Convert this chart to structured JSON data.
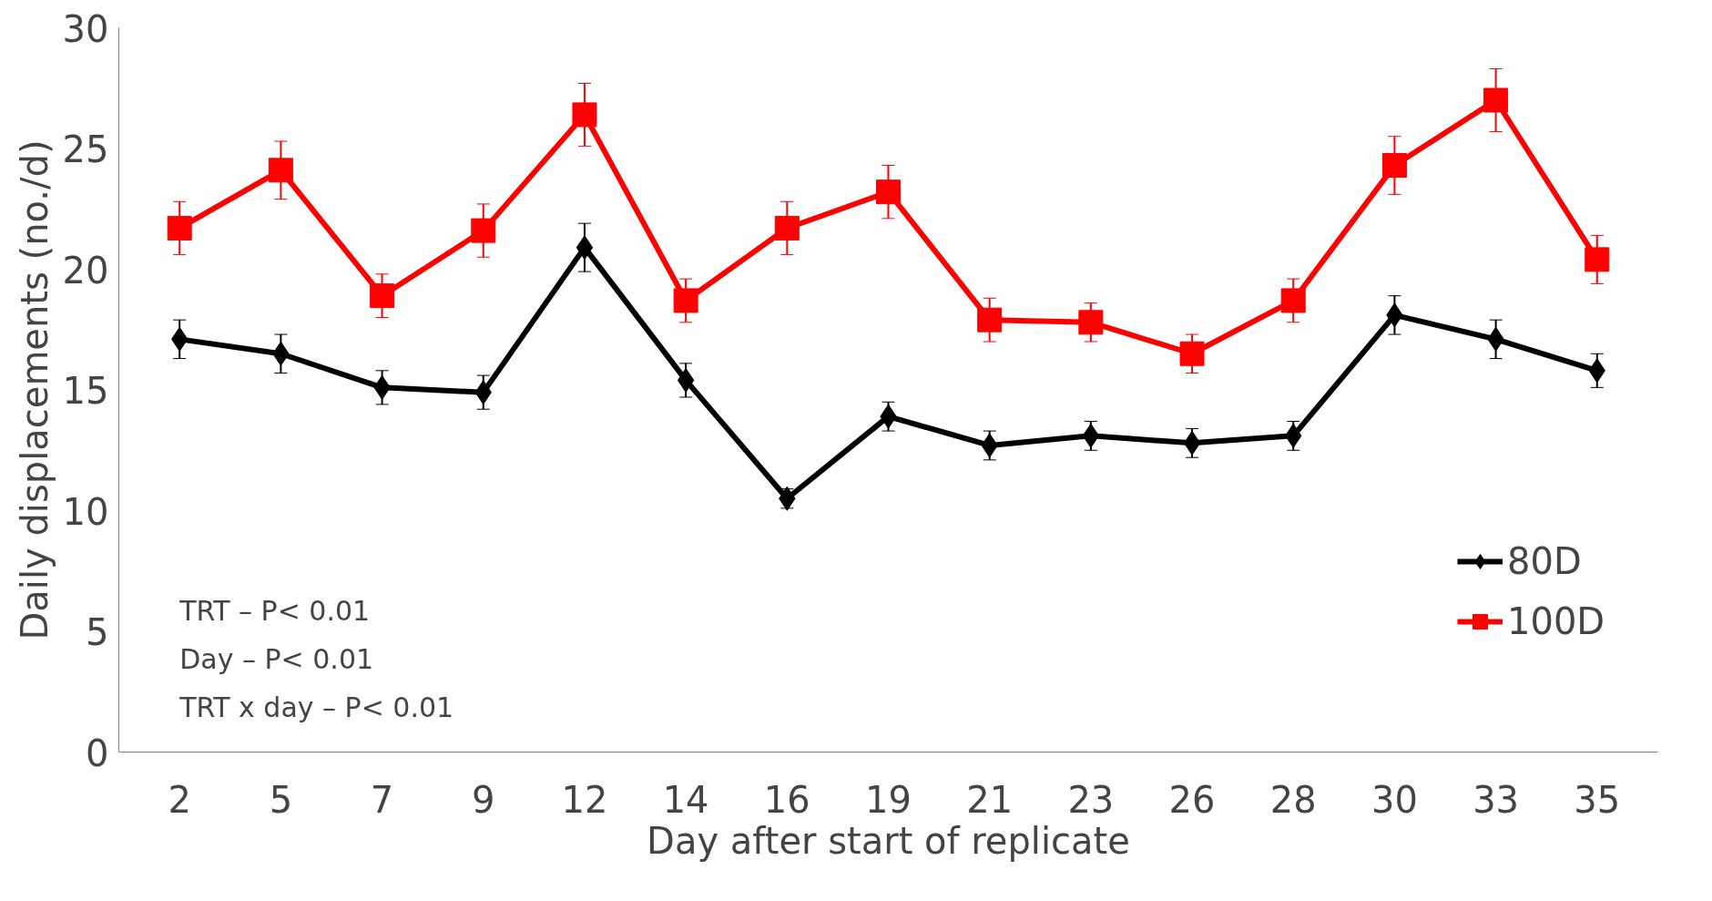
{
  "chart_data": {
    "type": "line",
    "xlabel": "Day after start of replicate",
    "ylabel": "Daily displacements (no./d)",
    "categories": [
      "2",
      "5",
      "7",
      "9",
      "12",
      "14",
      "16",
      "19",
      "21",
      "23",
      "26",
      "28",
      "30",
      "33",
      "35"
    ],
    "series": [
      {
        "name": "80D",
        "color": "#000000",
        "marker": "diamond",
        "values": [
          17.1,
          16.5,
          15.1,
          14.9,
          20.9,
          15.4,
          10.5,
          13.9,
          12.7,
          13.1,
          12.8,
          13.1,
          18.1,
          17.1,
          15.8
        ],
        "errors": [
          0.8,
          0.8,
          0.7,
          0.7,
          1.0,
          0.7,
          0.4,
          0.6,
          0.6,
          0.6,
          0.6,
          0.6,
          0.8,
          0.8,
          0.7
        ]
      },
      {
        "name": "100D",
        "color": "#ff0000",
        "marker": "square",
        "values": [
          21.7,
          24.1,
          18.9,
          21.6,
          26.4,
          18.7,
          21.7,
          23.2,
          17.9,
          17.8,
          16.5,
          18.7,
          24.3,
          27.0,
          20.4
        ],
        "errors": [
          1.1,
          1.2,
          0.9,
          1.1,
          1.3,
          0.9,
          1.1,
          1.1,
          0.9,
          0.8,
          0.8,
          0.9,
          1.2,
          1.3,
          1.0
        ]
      }
    ],
    "ylim": [
      0,
      30
    ],
    "yticks": [
      0,
      5,
      10,
      15,
      20,
      25,
      30
    ],
    "grid": false,
    "legend": "right",
    "line_style": "solid",
    "annotations": [
      "TRT – P< 0.01",
      "Day – P< 0.01",
      "TRT x day – P< 0.01"
    ]
  }
}
